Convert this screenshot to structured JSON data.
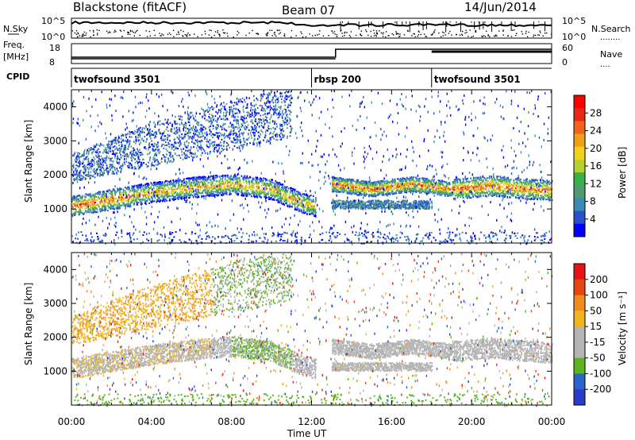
{
  "header": {
    "station": "Blackstone (fitACF)",
    "beam": "Beam 07",
    "date": "14/Jun/2014"
  },
  "side_labels": {
    "nsky": "N.Sky",
    "freq": "Freq.",
    "freq_unit": "[MHz]",
    "cpid": "CPID",
    "nsearch": "N.Search",
    "nave": "Nave"
  },
  "top_axes": {
    "noise_left_ticks": [
      "10^5",
      "10^0"
    ],
    "noise_right_ticks": [
      "10^5",
      "10^0"
    ],
    "freq_ticks": [
      "18",
      "8"
    ],
    "nave_ticks": [
      "60",
      "0"
    ]
  },
  "cpid_segments": [
    {
      "label": "twofsound 3501",
      "start_h": 0.0
    },
    {
      "label": "rbsp 200",
      "start_h": 12.0
    },
    {
      "label": "twofsound 3501",
      "start_h": 18.0
    }
  ],
  "chart_data": [
    {
      "type": "heatmap",
      "panel": "power",
      "ylabel": "Slant Range [km]",
      "xlim": [
        0,
        24
      ],
      "ylim": [
        0,
        4500
      ],
      "yticks": [
        "1000",
        "2000",
        "3000",
        "4000"
      ],
      "colorbar": {
        "label": "Power [dB]",
        "ticks": [
          "28",
          "24",
          "20",
          "16",
          "12",
          "8",
          "4"
        ],
        "colors": [
          "#0000ff",
          "#2850c8",
          "#3a8cb4",
          "#4f9a6e",
          "#3cb048",
          "#b4d232",
          "#f0d21e",
          "#f0a018",
          "#f0641e",
          "#e62814",
          "#ff0000"
        ]
      },
      "band_trace": [
        {
          "t": 0,
          "r": 1100
        },
        {
          "t": 2,
          "r": 1300
        },
        {
          "t": 4,
          "r": 1500
        },
        {
          "t": 6,
          "r": 1650
        },
        {
          "t": 8,
          "r": 1750
        },
        {
          "t": 10,
          "r": 1600
        },
        {
          "t": 11.5,
          "r": 1200
        },
        {
          "t": 12.5,
          "r": 1050
        },
        {
          "t": 13,
          "r": 1750
        },
        {
          "t": 15,
          "r": 1600
        },
        {
          "t": 17,
          "r": 1750
        },
        {
          "t": 19,
          "r": 1600
        },
        {
          "t": 21,
          "r": 1700
        },
        {
          "t": 24,
          "r": 1550
        }
      ]
    },
    {
      "type": "heatmap",
      "panel": "velocity",
      "ylabel": "Slant Range [km]",
      "xlabel": "Time UT",
      "xlim": [
        0,
        24
      ],
      "ylim": [
        0,
        4500
      ],
      "yticks": [
        "1000",
        "2000",
        "3000",
        "4000"
      ],
      "xticks": [
        "00:00",
        "04:00",
        "08:00",
        "12:00",
        "16:00",
        "20:00",
        "00:00"
      ],
      "colorbar": {
        "label": "Velocity [m s⁻¹]",
        "ticks": [
          "200",
          "100",
          "50",
          "15",
          "-15",
          "-50",
          "-100",
          "-200"
        ],
        "colors": [
          "#2a3cc8",
          "#2a64c8",
          "#5ab41e",
          "#b4b4b4",
          "#b4b4b4",
          "#f0b41e",
          "#f08c1e",
          "#e64614",
          "#e61414"
        ]
      }
    }
  ]
}
